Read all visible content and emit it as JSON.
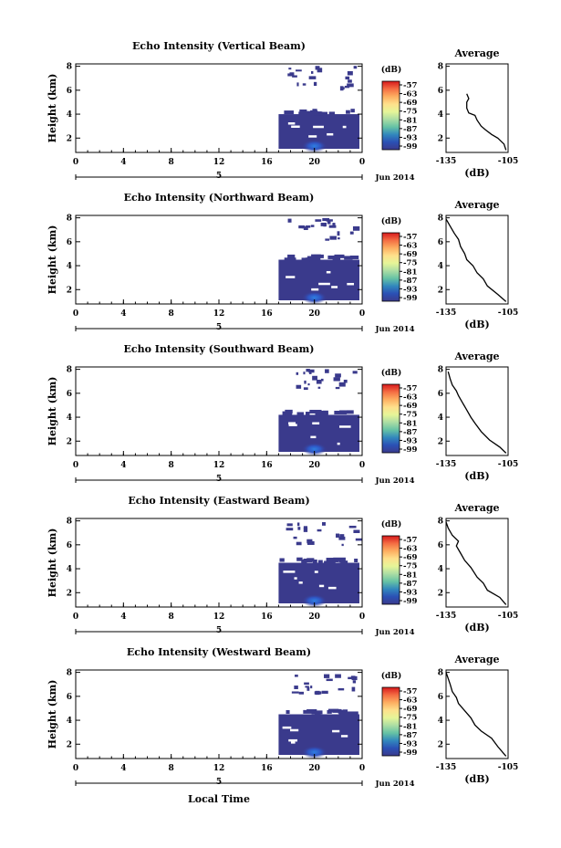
{
  "chart_data": {
    "type": "heatmap",
    "xlabel": "Local Time",
    "date_label": "Jun 2014",
    "day_label": "5",
    "xticks": [
      "0",
      "4",
      "8",
      "12",
      "16",
      "20",
      "0"
    ],
    "ylabel": "Height (km)",
    "yticks": [
      "2",
      "4",
      "6",
      "8"
    ],
    "ylim_km": [
      0.8,
      8.2
    ],
    "xlim_hours": [
      0,
      24
    ],
    "colorbar": {
      "unit": "(dB)",
      "labels": [
        "-57",
        "-63",
        "-69",
        "-75",
        "-81",
        "-87",
        "-93",
        "-99"
      ],
      "colors": [
        "#d7191c",
        "#f46d43",
        "#fdae61",
        "#fee08b",
        "#e6f598",
        "#abdda4",
        "#66c2a5",
        "#3288bd",
        "#2b50b5",
        "#3a3a8c"
      ]
    },
    "profile": {
      "title": "Average",
      "xlabel": "(dB)",
      "xticks": [
        "-135",
        "-105"
      ],
      "xlim_db": [
        -135,
        -105
      ],
      "yticks": [
        "2",
        "4",
        "6",
        "8"
      ]
    },
    "panels": [
      {
        "title": "Echo Intensity (Vertical Beam)",
        "echo_start_hour": 17.0,
        "echo_top_km": 4.0,
        "profile": [
          [
            -106,
            1.0
          ],
          [
            -107,
            1.5
          ],
          [
            -110,
            2.0
          ],
          [
            -113,
            2.3
          ],
          [
            -116,
            2.7
          ],
          [
            -118,
            3.0
          ],
          [
            -120,
            3.5
          ],
          [
            -121,
            3.9
          ],
          [
            -124,
            4.1
          ],
          [
            -125,
            4.5
          ],
          [
            -125,
            5.0
          ],
          [
            -124,
            5.3
          ],
          [
            -125,
            5.7
          ]
        ]
      },
      {
        "title": "Echo Intensity (Northward Beam)",
        "echo_start_hour": 17.0,
        "echo_top_km": 4.5,
        "profile": [
          [
            -106,
            1.0
          ],
          [
            -110,
            1.6
          ],
          [
            -115,
            2.3
          ],
          [
            -117,
            2.9
          ],
          [
            -120,
            3.4
          ],
          [
            -122,
            4.0
          ],
          [
            -125,
            4.5
          ],
          [
            -126,
            5.0
          ],
          [
            -128,
            5.6
          ],
          [
            -129,
            6.2
          ],
          [
            -131,
            6.7
          ],
          [
            -133,
            7.3
          ],
          [
            -135,
            7.9
          ]
        ]
      },
      {
        "title": "Echo Intensity (Southward Beam)",
        "echo_start_hour": 17.0,
        "echo_top_km": 4.2,
        "profile": [
          [
            -106,
            1.0
          ],
          [
            -109,
            1.5
          ],
          [
            -114,
            2.1
          ],
          [
            -118,
            2.8
          ],
          [
            -121,
            3.5
          ],
          [
            -123,
            4.0
          ],
          [
            -125,
            4.6
          ],
          [
            -127,
            5.2
          ],
          [
            -129,
            5.8
          ],
          [
            -130,
            6.2
          ],
          [
            -132,
            6.7
          ],
          [
            -133,
            7.2
          ],
          [
            -134,
            7.8
          ]
        ]
      },
      {
        "title": "Echo Intensity (Eastward Beam)",
        "echo_start_hour": 17.0,
        "echo_top_km": 4.5,
        "profile": [
          [
            -106,
            1.0
          ],
          [
            -109,
            1.6
          ],
          [
            -115,
            2.2
          ],
          [
            -117,
            2.8
          ],
          [
            -120,
            3.3
          ],
          [
            -123,
            4.1
          ],
          [
            -126,
            4.7
          ],
          [
            -128,
            5.3
          ],
          [
            -130,
            5.9
          ],
          [
            -129,
            6.3
          ],
          [
            -132,
            6.8
          ],
          [
            -134,
            7.4
          ],
          [
            -135,
            7.9
          ]
        ]
      },
      {
        "title": "Echo Intensity (Westward Beam)",
        "echo_start_hour": 17.0,
        "echo_top_km": 4.5,
        "profile": [
          [
            -106,
            1.0
          ],
          [
            -110,
            1.8
          ],
          [
            -113,
            2.5
          ],
          [
            -118,
            3.1
          ],
          [
            -121,
            3.6
          ],
          [
            -123,
            4.2
          ],
          [
            -126,
            4.8
          ],
          [
            -129,
            5.4
          ],
          [
            -130,
            5.9
          ],
          [
            -132,
            6.4
          ],
          [
            -133,
            7.0
          ],
          [
            -134,
            7.5
          ],
          [
            -135,
            8.0
          ]
        ]
      }
    ]
  }
}
